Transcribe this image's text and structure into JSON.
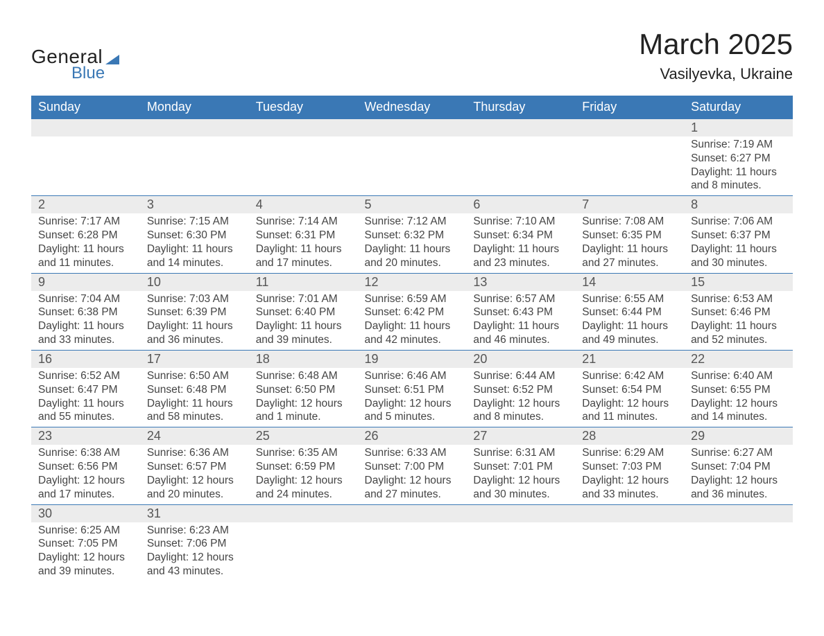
{
  "logo": {
    "text1": "General",
    "text2": "Blue",
    "accent_color": "#3a78b5"
  },
  "title": "March 2025",
  "location": "Vasilyevka, Ukraine",
  "colors": {
    "header_bg": "#3a78b5",
    "header_text": "#ffffff",
    "daynum_bg": "#ececec",
    "text": "#444444",
    "border": "#3a78b5"
  },
  "day_headers": [
    "Sunday",
    "Monday",
    "Tuesday",
    "Wednesday",
    "Thursday",
    "Friday",
    "Saturday"
  ],
  "weeks": [
    [
      null,
      null,
      null,
      null,
      null,
      null,
      {
        "n": "1",
        "sunrise": "7:19 AM",
        "sunset": "6:27 PM",
        "daylight": "11 hours and 8 minutes."
      }
    ],
    [
      {
        "n": "2",
        "sunrise": "7:17 AM",
        "sunset": "6:28 PM",
        "daylight": "11 hours and 11 minutes."
      },
      {
        "n": "3",
        "sunrise": "7:15 AM",
        "sunset": "6:30 PM",
        "daylight": "11 hours and 14 minutes."
      },
      {
        "n": "4",
        "sunrise": "7:14 AM",
        "sunset": "6:31 PM",
        "daylight": "11 hours and 17 minutes."
      },
      {
        "n": "5",
        "sunrise": "7:12 AM",
        "sunset": "6:32 PM",
        "daylight": "11 hours and 20 minutes."
      },
      {
        "n": "6",
        "sunrise": "7:10 AM",
        "sunset": "6:34 PM",
        "daylight": "11 hours and 23 minutes."
      },
      {
        "n": "7",
        "sunrise": "7:08 AM",
        "sunset": "6:35 PM",
        "daylight": "11 hours and 27 minutes."
      },
      {
        "n": "8",
        "sunrise": "7:06 AM",
        "sunset": "6:37 PM",
        "daylight": "11 hours and 30 minutes."
      }
    ],
    [
      {
        "n": "9",
        "sunrise": "7:04 AM",
        "sunset": "6:38 PM",
        "daylight": "11 hours and 33 minutes."
      },
      {
        "n": "10",
        "sunrise": "7:03 AM",
        "sunset": "6:39 PM",
        "daylight": "11 hours and 36 minutes."
      },
      {
        "n": "11",
        "sunrise": "7:01 AM",
        "sunset": "6:40 PM",
        "daylight": "11 hours and 39 minutes."
      },
      {
        "n": "12",
        "sunrise": "6:59 AM",
        "sunset": "6:42 PM",
        "daylight": "11 hours and 42 minutes."
      },
      {
        "n": "13",
        "sunrise": "6:57 AM",
        "sunset": "6:43 PM",
        "daylight": "11 hours and 46 minutes."
      },
      {
        "n": "14",
        "sunrise": "6:55 AM",
        "sunset": "6:44 PM",
        "daylight": "11 hours and 49 minutes."
      },
      {
        "n": "15",
        "sunrise": "6:53 AM",
        "sunset": "6:46 PM",
        "daylight": "11 hours and 52 minutes."
      }
    ],
    [
      {
        "n": "16",
        "sunrise": "6:52 AM",
        "sunset": "6:47 PM",
        "daylight": "11 hours and 55 minutes."
      },
      {
        "n": "17",
        "sunrise": "6:50 AM",
        "sunset": "6:48 PM",
        "daylight": "11 hours and 58 minutes."
      },
      {
        "n": "18",
        "sunrise": "6:48 AM",
        "sunset": "6:50 PM",
        "daylight": "12 hours and 1 minute."
      },
      {
        "n": "19",
        "sunrise": "6:46 AM",
        "sunset": "6:51 PM",
        "daylight": "12 hours and 5 minutes."
      },
      {
        "n": "20",
        "sunrise": "6:44 AM",
        "sunset": "6:52 PM",
        "daylight": "12 hours and 8 minutes."
      },
      {
        "n": "21",
        "sunrise": "6:42 AM",
        "sunset": "6:54 PM",
        "daylight": "12 hours and 11 minutes."
      },
      {
        "n": "22",
        "sunrise": "6:40 AM",
        "sunset": "6:55 PM",
        "daylight": "12 hours and 14 minutes."
      }
    ],
    [
      {
        "n": "23",
        "sunrise": "6:38 AM",
        "sunset": "6:56 PM",
        "daylight": "12 hours and 17 minutes."
      },
      {
        "n": "24",
        "sunrise": "6:36 AM",
        "sunset": "6:57 PM",
        "daylight": "12 hours and 20 minutes."
      },
      {
        "n": "25",
        "sunrise": "6:35 AM",
        "sunset": "6:59 PM",
        "daylight": "12 hours and 24 minutes."
      },
      {
        "n": "26",
        "sunrise": "6:33 AM",
        "sunset": "7:00 PM",
        "daylight": "12 hours and 27 minutes."
      },
      {
        "n": "27",
        "sunrise": "6:31 AM",
        "sunset": "7:01 PM",
        "daylight": "12 hours and 30 minutes."
      },
      {
        "n": "28",
        "sunrise": "6:29 AM",
        "sunset": "7:03 PM",
        "daylight": "12 hours and 33 minutes."
      },
      {
        "n": "29",
        "sunrise": "6:27 AM",
        "sunset": "7:04 PM",
        "daylight": "12 hours and 36 minutes."
      }
    ],
    [
      {
        "n": "30",
        "sunrise": "6:25 AM",
        "sunset": "7:05 PM",
        "daylight": "12 hours and 39 minutes."
      },
      {
        "n": "31",
        "sunrise": "6:23 AM",
        "sunset": "7:06 PM",
        "daylight": "12 hours and 43 minutes."
      },
      null,
      null,
      null,
      null,
      null
    ]
  ],
  "labels": {
    "sunrise": "Sunrise: ",
    "sunset": "Sunset: ",
    "daylight": "Daylight: "
  }
}
